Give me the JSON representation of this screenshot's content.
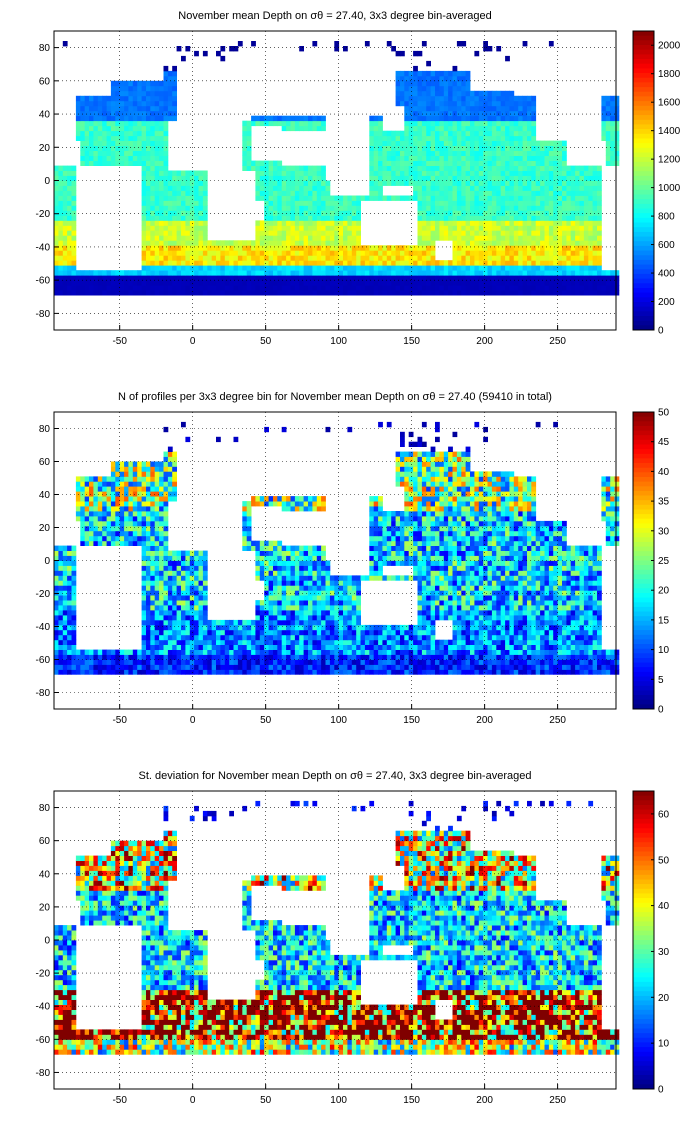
{
  "chart_data": [
    {
      "type": "heatmap",
      "title": "November mean Depth on σθ = 27.40, 3x3 degree bin-averaged",
      "xlim": [
        -95,
        290
      ],
      "ylim": [
        -90,
        90
      ],
      "xticks": [
        -50,
        0,
        50,
        100,
        150,
        200,
        250
      ],
      "yticks": [
        -80,
        -60,
        -40,
        -20,
        0,
        20,
        40,
        60,
        80
      ],
      "grid": true,
      "colorbar": {
        "min": 0,
        "max": 2100,
        "ticks": [
          0,
          200,
          400,
          600,
          800,
          1000,
          1200,
          1400,
          1600,
          1800,
          2000
        ]
      },
      "colormap": "jet",
      "bin_size_deg": 3,
      "zones": [
        {
          "lat": [
            66,
            84
          ],
          "value": 50
        },
        {
          "lat": [
            36,
            66
          ],
          "value": 500
        },
        {
          "lat": [
            -24,
            36
          ],
          "value": 900
        },
        {
          "lat": [
            -40,
            -24
          ],
          "value": 1200
        },
        {
          "lat": [
            -52,
            -40
          ],
          "value": 1350
        },
        {
          "lat": [
            -58,
            -52
          ],
          "value": 700
        },
        {
          "lat": [
            -70,
            -58
          ],
          "value": 120
        }
      ]
    },
    {
      "type": "heatmap",
      "title": "N of profiles per 3x3 degree bin for November mean Depth on σθ = 27.40 (59410 in total)",
      "xlim": [
        -95,
        290
      ],
      "ylim": [
        -90,
        90
      ],
      "xticks": [
        -50,
        0,
        50,
        100,
        150,
        200,
        250
      ],
      "yticks": [
        -80,
        -60,
        -40,
        -20,
        0,
        20,
        40,
        60,
        80
      ],
      "grid": true,
      "colorbar": {
        "min": 0,
        "max": 50,
        "ticks": [
          0,
          5,
          10,
          15,
          20,
          25,
          30,
          35,
          40,
          45,
          50
        ]
      },
      "colormap": "jet",
      "bin_size_deg": 3,
      "total_profiles": 59410,
      "zones": [
        {
          "lat": [
            66,
            84
          ],
          "value": 3
        },
        {
          "lat": [
            30,
            66
          ],
          "value": 24
        },
        {
          "lat": [
            -30,
            30
          ],
          "value": 17
        },
        {
          "lat": [
            -58,
            -30
          ],
          "value": 13
        },
        {
          "lat": [
            -70,
            -58
          ],
          "value": 8
        }
      ]
    },
    {
      "type": "heatmap",
      "title": "St. deviation for November mean Depth on σθ = 27.40, 3x3 degree bin-averaged",
      "xlim": [
        -95,
        290
      ],
      "ylim": [
        -90,
        90
      ],
      "xticks": [
        -50,
        0,
        50,
        100,
        150,
        200,
        250
      ],
      "yticks": [
        -80,
        -60,
        -40,
        -20,
        0,
        20,
        40,
        60,
        80
      ],
      "grid": true,
      "colorbar": {
        "min": 0,
        "max": 65,
        "ticks": [
          0,
          10,
          20,
          30,
          40,
          50,
          60
        ]
      },
      "colormap": "jet",
      "bin_size_deg": 3,
      "zones": [
        {
          "lat": [
            66,
            84
          ],
          "value": 8
        },
        {
          "lat": [
            30,
            66
          ],
          "value": 40
        },
        {
          "lat": [
            -30,
            30
          ],
          "value": 22
        },
        {
          "lat": [
            -60,
            -30
          ],
          "value": 60
        },
        {
          "lat": [
            -70,
            -60
          ],
          "value": 35
        }
      ]
    }
  ]
}
